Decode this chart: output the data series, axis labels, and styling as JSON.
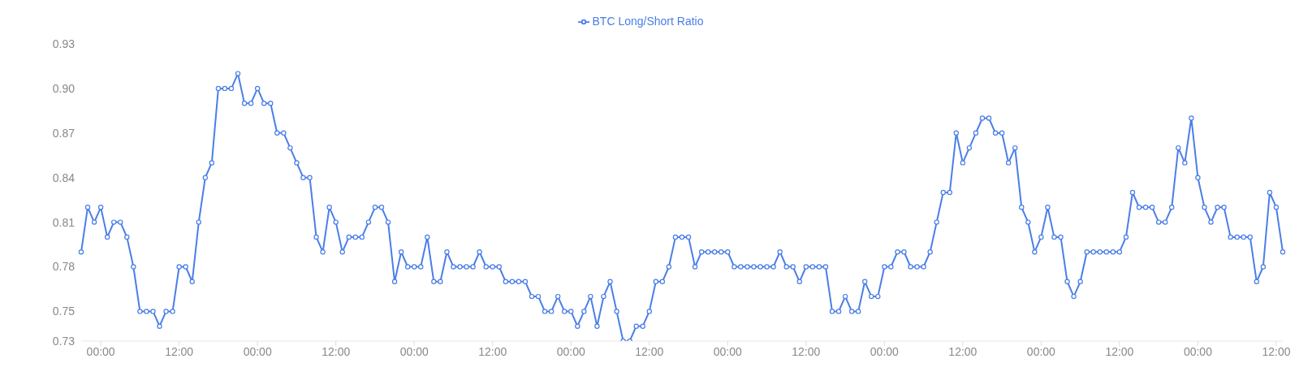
{
  "chart_data": {
    "type": "line",
    "legend": "top",
    "marker": "circle",
    "line_style": "solid",
    "grid": false,
    "categories": [
      null,
      null,
      null,
      "00:00",
      null,
      null,
      null,
      null,
      null,
      null,
      null,
      null,
      null,
      null,
      null,
      "12:00",
      null,
      null,
      null,
      null,
      null,
      null,
      null,
      null,
      null,
      null,
      null,
      "00:00",
      null,
      null,
      null,
      null,
      null,
      null,
      null,
      null,
      null,
      null,
      null,
      "12:00",
      null,
      null,
      null,
      null,
      null,
      null,
      null,
      null,
      null,
      null,
      null,
      "00:00",
      null,
      null,
      null,
      null,
      null,
      null,
      null,
      null,
      null,
      null,
      null,
      "12:00",
      null,
      null,
      null,
      null,
      null,
      null,
      null,
      null,
      null,
      null,
      null,
      "00:00",
      null,
      null,
      null,
      null,
      null,
      null,
      null,
      null,
      null,
      null,
      null,
      "12:00",
      null,
      null,
      null,
      null,
      null,
      null,
      null,
      null,
      null,
      null,
      null,
      "00:00",
      null,
      null,
      null,
      null,
      null,
      null,
      null,
      null,
      null,
      null,
      null,
      "12:00",
      null,
      null,
      null,
      null,
      null,
      null,
      null,
      null,
      null,
      null,
      null,
      "00:00",
      null,
      null,
      null,
      null,
      null,
      null,
      null,
      null,
      null,
      null,
      null,
      "12:00",
      null,
      null,
      null,
      null,
      null,
      null,
      null,
      null,
      null,
      null,
      null,
      "00:00",
      null,
      null,
      null,
      null,
      null,
      null,
      null,
      null,
      null,
      null,
      null,
      "12:00",
      null,
      null,
      null,
      null,
      null,
      null,
      null,
      null,
      null,
      null,
      null,
      "00:00",
      null,
      null,
      null,
      null,
      null,
      null,
      null,
      null,
      null,
      null,
      null,
      "12:00",
      null
    ],
    "ylim": [
      0.73,
      0.93
    ],
    "yticks": [
      0.73,
      0.75,
      0.78,
      0.81,
      0.84,
      0.87,
      {
        "value": 0.9,
        "label": "0.90"
      },
      0.93
    ],
    "series": [
      {
        "name": "BTC Long/Short Ratio",
        "color": "#4a7ee8",
        "values": [
          0.79,
          0.82,
          0.81,
          0.82,
          0.8,
          0.81,
          0.81,
          0.8,
          0.78,
          0.75,
          0.75,
          0.75,
          0.74,
          0.75,
          0.75,
          0.78,
          0.78,
          0.77,
          0.81,
          0.84,
          0.85,
          0.9,
          0.9,
          0.9,
          0.91,
          0.89,
          0.89,
          0.9,
          0.89,
          0.89,
          0.87,
          0.87,
          0.86,
          0.85,
          0.84,
          0.84,
          0.8,
          0.79,
          0.82,
          0.81,
          0.79,
          0.8,
          0.8,
          0.8,
          0.81,
          0.82,
          0.82,
          0.81,
          0.77,
          0.79,
          0.78,
          0.78,
          0.78,
          0.8,
          0.77,
          0.77,
          0.79,
          0.78,
          0.78,
          0.78,
          0.78,
          0.79,
          0.78,
          0.78,
          0.78,
          0.77,
          0.77,
          0.77,
          0.77,
          0.76,
          0.76,
          0.75,
          0.75,
          0.76,
          0.75,
          0.75,
          0.74,
          0.75,
          0.76,
          0.74,
          0.76,
          0.77,
          0.75,
          0.73,
          0.73,
          0.74,
          0.74,
          0.75,
          0.77,
          0.77,
          0.78,
          0.8,
          0.8,
          0.8,
          0.78,
          0.79,
          0.79,
          0.79,
          0.79,
          0.79,
          0.78,
          0.78,
          0.78,
          0.78,
          0.78,
          0.78,
          0.78,
          0.79,
          0.78,
          0.78,
          0.77,
          0.78,
          0.78,
          0.78,
          0.78,
          0.75,
          0.75,
          0.76,
          0.75,
          0.75,
          0.77,
          0.76,
          0.76,
          0.78,
          0.78,
          0.79,
          0.79,
          0.78,
          0.78,
          0.78,
          0.79,
          0.81,
          0.83,
          0.83,
          0.87,
          0.85,
          0.86,
          0.87,
          0.88,
          0.88,
          0.87,
          0.87,
          0.85,
          0.86,
          0.82,
          0.81,
          0.79,
          0.8,
          0.82,
          0.8,
          0.8,
          0.77,
          0.76,
          0.77,
          0.79,
          0.79,
          0.79,
          0.79,
          0.79,
          0.79,
          0.8,
          0.83,
          0.82,
          0.82,
          0.82,
          0.81,
          0.81,
          0.82,
          0.86,
          0.85,
          0.88,
          0.84,
          0.82,
          0.81,
          0.82,
          0.82,
          0.8,
          0.8,
          0.8,
          0.8,
          0.77,
          0.78,
          0.83,
          0.82,
          0.79
        ]
      }
    ]
  }
}
